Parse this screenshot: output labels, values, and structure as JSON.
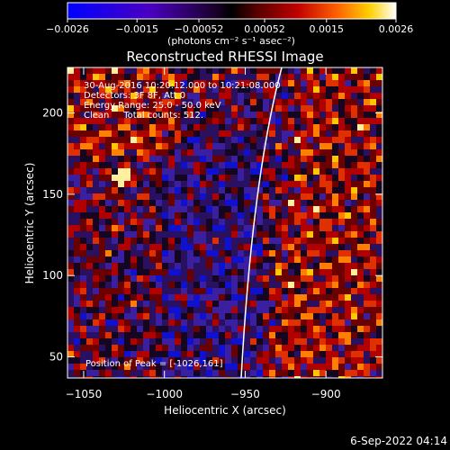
{
  "chart_data": {
    "type": "heatmap",
    "title": "Reconstructed RHESSI Image",
    "xlabel": "Heliocentric X (arcsec)",
    "ylabel": "Heliocentric Y (arcsec)",
    "xlim": [
      -1060,
      -865
    ],
    "ylim": [
      37,
      228
    ],
    "x_ticks": [
      -1050,
      -1000,
      -950,
      -900
    ],
    "x_tick_labels": [
      "−1050",
      "−1000",
      "−950",
      "−900"
    ],
    "y_ticks": [
      50,
      100,
      150,
      200
    ],
    "y_tick_labels": [
      "50",
      "100",
      "150",
      "200"
    ],
    "colorbar": {
      "range": [
        -0.0026,
        0.0026
      ],
      "ticks": [
        -0.0026,
        -0.0015,
        -0.00052,
        0.00052,
        0.0015,
        0.0026
      ],
      "tick_labels": [
        "−0.0026",
        "−0.0015",
        "−0.00052",
        "0.00052",
        "0.0015",
        "0.0026"
      ],
      "unit_label": "(photons cm⁻² s⁻¹ asec⁻²)"
    },
    "annotations": [
      "30-Aug-2016 10:20:12.000 to 10:21:08.000",
      "Detectors: 3F 8F, Att 0",
      "Energy Range: 25.0 - 50.0 keV",
      "Clean     Total counts: 512."
    ],
    "peak_label": "Position of Peak = [-1026,161]",
    "peak": {
      "x": -1026,
      "y": 161
    },
    "limb_visible": true
  },
  "footer": {
    "date": "6-Sep-2022 04:14"
  }
}
